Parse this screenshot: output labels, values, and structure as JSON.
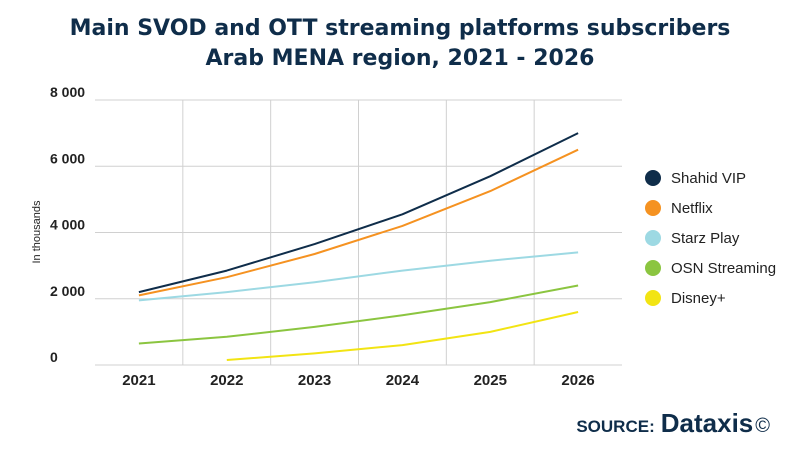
{
  "title_line1": "Main SVOD and OTT streaming platforms subscribers",
  "title_line2": "Arab MENA region, 2021 - 2026",
  "source_label": "SOURCE:",
  "source_brand": "Dataxis",
  "source_copy": "©",
  "chart_data": {
    "type": "line",
    "title": "Main SVOD and OTT streaming platforms subscribers Arab MENA region, 2021 - 2026",
    "ylabel": "In thousands",
    "xlabel": "",
    "x": [
      "2021",
      "2022",
      "2023",
      "2024",
      "2025",
      "2026"
    ],
    "ylim": [
      0,
      8000
    ],
    "yticks": [
      0,
      2000,
      4000,
      6000,
      8000
    ],
    "ytick_labels": [
      "0",
      "2 000",
      "4 000",
      "6 000",
      "8 000"
    ],
    "grid": true,
    "legend_position": "right",
    "series": [
      {
        "name": "Shahid VIP",
        "color": "#0f2d4a",
        "values": [
          2200,
          2850,
          3650,
          4550,
          5700,
          7000
        ]
      },
      {
        "name": "Netflix",
        "color": "#f59221",
        "values": [
          2100,
          2650,
          3350,
          4200,
          5250,
          6500
        ]
      },
      {
        "name": "Starz Play",
        "color": "#9dd9e3",
        "values": [
          1950,
          2200,
          2500,
          2850,
          3150,
          3400
        ]
      },
      {
        "name": "OSN Streaming",
        "color": "#8bc540",
        "values": [
          650,
          850,
          1150,
          1500,
          1900,
          2400
        ]
      },
      {
        "name": "Disney+",
        "color": "#f2e413",
        "values": [
          null,
          150,
          350,
          600,
          1000,
          1600
        ]
      }
    ]
  }
}
